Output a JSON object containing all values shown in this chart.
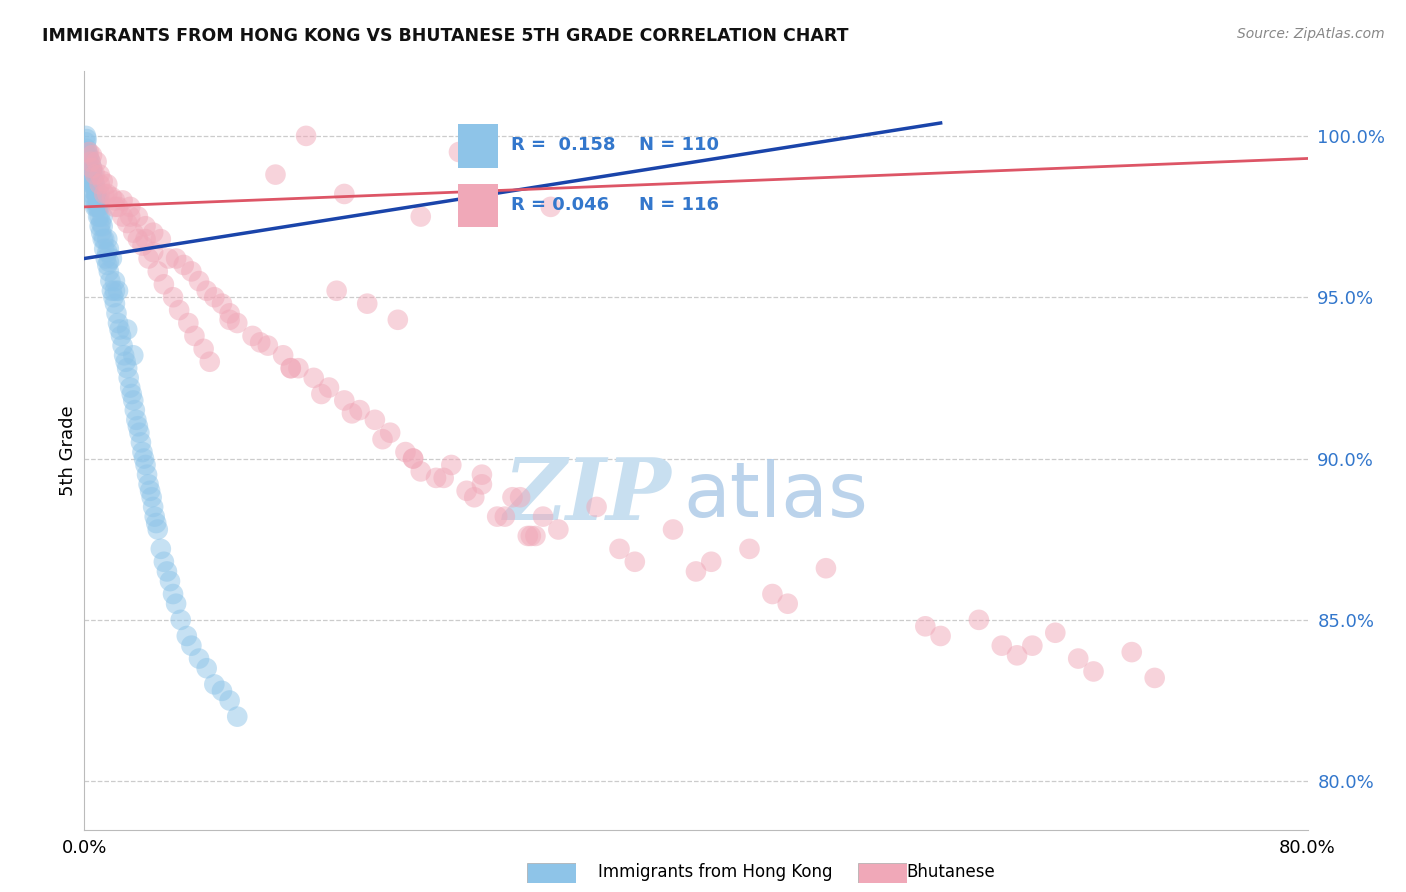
{
  "title": "IMMIGRANTS FROM HONG KONG VS BHUTANESE 5TH GRADE CORRELATION CHART",
  "source": "Source: ZipAtlas.com",
  "ylabel": "5th Grade",
  "y_ticks": [
    80.0,
    85.0,
    90.0,
    95.0,
    100.0
  ],
  "x_range": [
    0.0,
    80.0
  ],
  "y_range": [
    78.5,
    102.0
  ],
  "legend_blue_label": "Immigrants from Hong Kong",
  "legend_pink_label": "Bhutanese",
  "R_blue": 0.158,
  "N_blue": 110,
  "R_pink": 0.046,
  "N_pink": 116,
  "blue_color": "#8ec4e8",
  "pink_color": "#f0a8b8",
  "blue_line_color": "#1a44aa",
  "pink_line_color": "#dd5566",
  "watermark_zip_color": "#c8dff0",
  "watermark_atlas_color": "#b0cce8",
  "blue_x": [
    0.05,
    0.1,
    0.1,
    0.15,
    0.15,
    0.2,
    0.2,
    0.25,
    0.25,
    0.3,
    0.3,
    0.35,
    0.4,
    0.4,
    0.45,
    0.5,
    0.5,
    0.5,
    0.6,
    0.6,
    0.6,
    0.7,
    0.7,
    0.7,
    0.8,
    0.8,
    0.9,
    0.9,
    0.9,
    1.0,
    1.0,
    1.0,
    1.0,
    1.1,
    1.1,
    1.2,
    1.2,
    1.3,
    1.3,
    1.4,
    1.5,
    1.5,
    1.6,
    1.6,
    1.7,
    1.8,
    1.9,
    2.0,
    2.0,
    2.1,
    2.2,
    2.3,
    2.4,
    2.5,
    2.6,
    2.7,
    2.8,
    2.9,
    3.0,
    3.1,
    3.2,
    3.3,
    3.4,
    3.5,
    3.6,
    3.7,
    3.8,
    3.9,
    4.0,
    4.1,
    4.2,
    4.3,
    4.4,
    4.5,
    4.6,
    4.7,
    4.8,
    5.0,
    5.2,
    5.4,
    5.6,
    5.8,
    6.0,
    6.3,
    6.7,
    7.0,
    7.5,
    8.0,
    8.5,
    9.0,
    9.5,
    10.0,
    1.0,
    1.2,
    1.5,
    1.8,
    2.0,
    0.5,
    0.6,
    0.7,
    0.8,
    0.9,
    0.2,
    0.3,
    0.4,
    0.1,
    1.6,
    2.2,
    2.8,
    3.2
  ],
  "blue_y": [
    99.5,
    99.8,
    100.0,
    99.6,
    99.9,
    99.3,
    99.5,
    99.2,
    99.4,
    99.0,
    99.3,
    98.8,
    99.2,
    98.6,
    98.9,
    98.5,
    98.2,
    98.8,
    98.3,
    98.6,
    98.0,
    98.0,
    98.4,
    97.8,
    97.8,
    98.2,
    97.5,
    97.8,
    98.0,
    97.2,
    97.5,
    97.8,
    98.0,
    97.0,
    97.3,
    96.8,
    97.2,
    96.5,
    96.8,
    96.2,
    96.0,
    96.4,
    95.8,
    96.1,
    95.5,
    95.2,
    95.0,
    94.8,
    95.2,
    94.5,
    94.2,
    94.0,
    93.8,
    93.5,
    93.2,
    93.0,
    92.8,
    92.5,
    92.2,
    92.0,
    91.8,
    91.5,
    91.2,
    91.0,
    90.8,
    90.5,
    90.2,
    90.0,
    89.8,
    89.5,
    89.2,
    89.0,
    88.8,
    88.5,
    88.2,
    88.0,
    87.8,
    87.2,
    86.8,
    86.5,
    86.2,
    85.8,
    85.5,
    85.0,
    84.5,
    84.2,
    83.8,
    83.5,
    83.0,
    82.8,
    82.5,
    82.0,
    98.2,
    97.5,
    96.8,
    96.2,
    95.5,
    99.0,
    98.8,
    98.5,
    98.2,
    98.0,
    99.2,
    99.0,
    98.8,
    99.4,
    96.5,
    95.2,
    94.0,
    93.2
  ],
  "pink_x": [
    0.3,
    0.4,
    0.5,
    0.5,
    0.7,
    0.8,
    1.0,
    1.0,
    1.2,
    1.3,
    1.5,
    1.5,
    1.8,
    2.0,
    2.0,
    2.2,
    2.5,
    2.5,
    2.8,
    3.0,
    3.0,
    3.2,
    3.5,
    3.5,
    3.8,
    4.0,
    4.0,
    4.2,
    4.5,
    4.5,
    4.8,
    5.0,
    5.2,
    5.5,
    5.8,
    6.0,
    6.2,
    6.5,
    6.8,
    7.0,
    7.2,
    7.5,
    7.8,
    8.0,
    8.2,
    8.5,
    9.0,
    9.5,
    10.0,
    11.0,
    11.5,
    12.0,
    12.5,
    13.0,
    13.5,
    14.0,
    14.5,
    15.0,
    15.5,
    16.0,
    16.5,
    17.0,
    17.5,
    18.0,
    18.5,
    19.0,
    19.5,
    20.0,
    20.5,
    21.0,
    21.5,
    22.0,
    22.0,
    23.0,
    23.5,
    24.0,
    24.5,
    25.0,
    25.5,
    26.0,
    27.0,
    27.5,
    28.0,
    28.5,
    29.0,
    29.5,
    30.0,
    30.5,
    31.0,
    33.5,
    35.0,
    36.0,
    38.5,
    40.0,
    41.0,
    43.5,
    45.0,
    46.0,
    48.5,
    55.0,
    56.0,
    58.5,
    60.0,
    61.0,
    63.5,
    65.0,
    66.0,
    68.5,
    70.0,
    9.5,
    13.5,
    17.0,
    21.5,
    26.0,
    29.2,
    62.0
  ],
  "pink_y": [
    99.5,
    99.2,
    99.0,
    99.4,
    98.8,
    99.2,
    98.8,
    98.5,
    98.6,
    98.2,
    98.5,
    98.2,
    98.1,
    97.8,
    98.0,
    97.8,
    98.0,
    97.5,
    97.3,
    97.8,
    97.5,
    97.0,
    97.5,
    96.8,
    96.6,
    97.2,
    96.8,
    96.2,
    97.0,
    96.4,
    95.8,
    96.8,
    95.4,
    96.2,
    95.0,
    96.2,
    94.6,
    96.0,
    94.2,
    95.8,
    93.8,
    95.5,
    93.4,
    95.2,
    93.0,
    95.0,
    94.8,
    94.5,
    94.2,
    93.8,
    93.6,
    93.5,
    98.8,
    93.2,
    92.8,
    92.8,
    100.0,
    92.5,
    92.0,
    92.2,
    95.2,
    91.8,
    91.4,
    91.5,
    94.8,
    91.2,
    90.6,
    90.8,
    94.3,
    90.2,
    90.0,
    97.5,
    89.6,
    89.4,
    89.4,
    89.8,
    99.5,
    89.0,
    88.8,
    89.2,
    88.2,
    88.2,
    88.8,
    88.8,
    87.6,
    87.6,
    88.2,
    97.8,
    87.8,
    88.5,
    87.2,
    86.8,
    87.8,
    86.5,
    86.8,
    87.2,
    85.8,
    85.5,
    86.6,
    84.8,
    84.5,
    85.0,
    84.2,
    83.9,
    84.6,
    83.8,
    83.4,
    84.0,
    83.2,
    94.3,
    92.8,
    98.2,
    90.0,
    89.5,
    87.6,
    84.2
  ],
  "blue_trend_x": [
    0.0,
    56.0
  ],
  "blue_trend_y": [
    96.2,
    100.4
  ],
  "pink_trend_x": [
    0.0,
    80.0
  ],
  "pink_trend_y": [
    97.8,
    99.3
  ]
}
